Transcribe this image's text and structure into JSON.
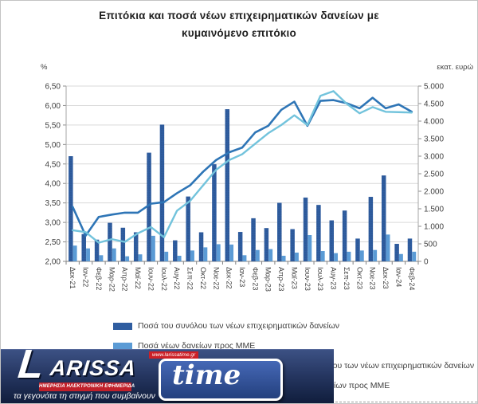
{
  "title": {
    "line1": "Επιτόκια και ποσά νέων επιχειρηματικών δανείων με",
    "line2": "κυμαινόμενο επιτόκιο",
    "full": "Επιτόκια και ποσά νέων επιχειρηματικών δανείων με κυμαινόμενο επιτόκιο"
  },
  "chart_data": {
    "type": "combo-bar-line",
    "grid": "horizontal",
    "legend_position": "bottom",
    "categories": [
      "Δεκ-21",
      "Ιαν-22",
      "Φεβ-22",
      "Μαρ-22",
      "Απρ-22",
      "Μαϊ-22",
      "Ιουν-22",
      "Ιουλ-22",
      "Αυγ-22",
      "Σεπ-22",
      "Οκτ-22",
      "Νοε-22",
      "Δεκ-22",
      "Ιαν-23",
      "Φεβ-23",
      "Μαρ-23",
      "Απρ-23",
      "Μαϊ-23",
      "Ιουν-23",
      "Ιουλ-23",
      "Αυγ-23",
      "Σεπ-23",
      "Οκτ-23",
      "Νοε-23",
      "Δεκ-23",
      "Ιαν-24",
      "Φεβ-24"
    ],
    "left_axis": {
      "unit": "%",
      "min": 2.0,
      "max": 6.5,
      "step": 0.5,
      "ticks": [
        "6,50",
        "6,00",
        "5,50",
        "5,00",
        "4,50",
        "4,00",
        "3,50",
        "3,00",
        "2,50",
        "2,00"
      ]
    },
    "right_axis": {
      "unit": "εκατ. ευρώ",
      "min": 0,
      "max": 5000,
      "step": 500,
      "ticks": [
        "5.000",
        "4.500",
        "4.000",
        "3.500",
        "3.000",
        "2.500",
        "2.000",
        "1.500",
        "1.000",
        "500",
        "0"
      ]
    },
    "series": [
      {
        "name": "Ποσά του συνόλου των νέων επιχειρηματικών δανείων",
        "type": "bar",
        "axis": "right",
        "color": "#2F5DA0",
        "values": [
          3000,
          780,
          620,
          1100,
          960,
          830,
          3100,
          3900,
          600,
          1850,
          830,
          2770,
          4340,
          840,
          1230,
          950,
          1670,
          920,
          1820,
          1610,
          1170,
          1450,
          650,
          1840,
          2450,
          500,
          650
        ]
      },
      {
        "name": "Ποσά νέων δανείων προς ΜΜΕ",
        "type": "bar",
        "axis": "right",
        "color": "#5B9BD5",
        "values": [
          450,
          370,
          175,
          370,
          145,
          200,
          730,
          275,
          160,
          310,
          400,
          490,
          480,
          175,
          325,
          350,
          160,
          250,
          750,
          295,
          235,
          275,
          310,
          325,
          765,
          210,
          275
        ]
      },
      {
        "name": "Επιτόκιο του συνόλου των νέων επιχειρηματικών δανείων",
        "type": "line",
        "axis": "left",
        "color": "#2E75B6",
        "values": [
          3.4,
          2.66,
          3.14,
          3.2,
          3.25,
          3.25,
          3.48,
          3.52,
          3.75,
          3.95,
          4.3,
          4.6,
          4.8,
          4.92,
          5.31,
          5.48,
          5.89,
          6.1,
          5.48,
          6.12,
          6.14,
          6.06,
          5.93,
          6.2,
          5.93,
          6.03,
          5.84
        ]
      },
      {
        "name": "Επιτόκιο νέων δανείων προς ΜΜΕ",
        "type": "line",
        "axis": "left",
        "color": "#72C3DC",
        "values": [
          2.8,
          2.75,
          2.48,
          2.57,
          2.5,
          2.72,
          2.88,
          2.62,
          3.3,
          3.55,
          3.95,
          4.35,
          4.6,
          4.75,
          5.02,
          5.29,
          5.5,
          5.75,
          5.5,
          6.25,
          6.37,
          6.05,
          5.8,
          5.96,
          5.84,
          5.83,
          5.82
        ]
      }
    ]
  },
  "watermark": {
    "brand_l": "L",
    "brand_rest": "ARISSA",
    "brand_script": "time",
    "url": "www.larissatime.gr",
    "strip": "ΗΜΕΡΗΣΙΑ ΗΛΕΚΤΡΟΝΙΚΗ ΕΦΗΜΕΡΙΔΑ",
    "tagline": "τα γεγονότα τη στιγμή που συμβαίνουν"
  }
}
